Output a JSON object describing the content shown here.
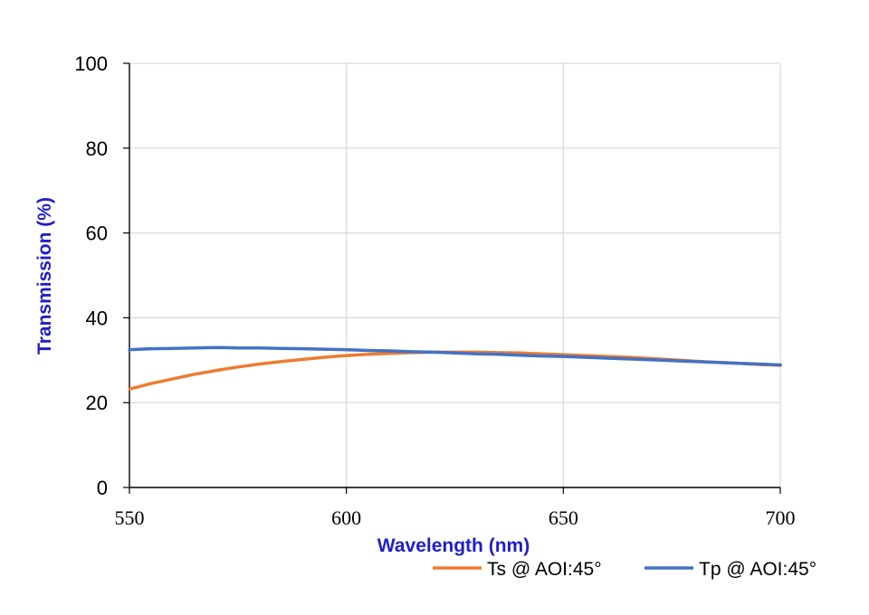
{
  "chart_data": {
    "type": "line",
    "xlabel": "Wavelength (nm)",
    "ylabel": "Transmission (%)",
    "xlim": [
      550,
      700
    ],
    "ylim": [
      0,
      100
    ],
    "xticks": [
      "550",
      "600",
      "650",
      "700"
    ],
    "yticks": [
      "0",
      "20",
      "40",
      "60",
      "80",
      "100"
    ],
    "grid": true,
    "legend_position": "bottom-right",
    "axis_title_color": "#1f1fc8",
    "series": [
      {
        "name": "Ts @ AOI:45°",
        "color": "#ed7d31",
        "x": [
          550,
          555,
          560,
          565,
          570,
          575,
          580,
          585,
          590,
          595,
          600,
          605,
          610,
          615,
          620,
          625,
          630,
          635,
          640,
          645,
          650,
          655,
          660,
          665,
          670,
          675,
          680,
          685,
          690,
          695,
          700
        ],
        "values": [
          23.2,
          24.5,
          25.6,
          26.7,
          27.6,
          28.4,
          29.1,
          29.7,
          30.2,
          30.7,
          31.1,
          31.4,
          31.6,
          31.8,
          31.9,
          31.9,
          31.9,
          31.8,
          31.7,
          31.5,
          31.3,
          31.1,
          30.9,
          30.7,
          30.4,
          30.1,
          29.8,
          29.5,
          29.3,
          29.0,
          28.8
        ]
      },
      {
        "name": "Tp @ AOI:45°",
        "color": "#4472c4",
        "x": [
          550,
          555,
          560,
          565,
          570,
          575,
          580,
          585,
          590,
          595,
          600,
          605,
          610,
          615,
          620,
          625,
          630,
          635,
          640,
          645,
          650,
          655,
          660,
          665,
          670,
          675,
          680,
          685,
          690,
          695,
          700
        ],
        "values": [
          32.5,
          32.7,
          32.8,
          32.9,
          33.0,
          32.9,
          32.9,
          32.8,
          32.7,
          32.6,
          32.5,
          32.3,
          32.2,
          32.0,
          31.9,
          31.7,
          31.5,
          31.4,
          31.2,
          31.0,
          30.9,
          30.7,
          30.5,
          30.3,
          30.1,
          29.9,
          29.7,
          29.5,
          29.3,
          29.1,
          28.9
        ]
      }
    ]
  }
}
